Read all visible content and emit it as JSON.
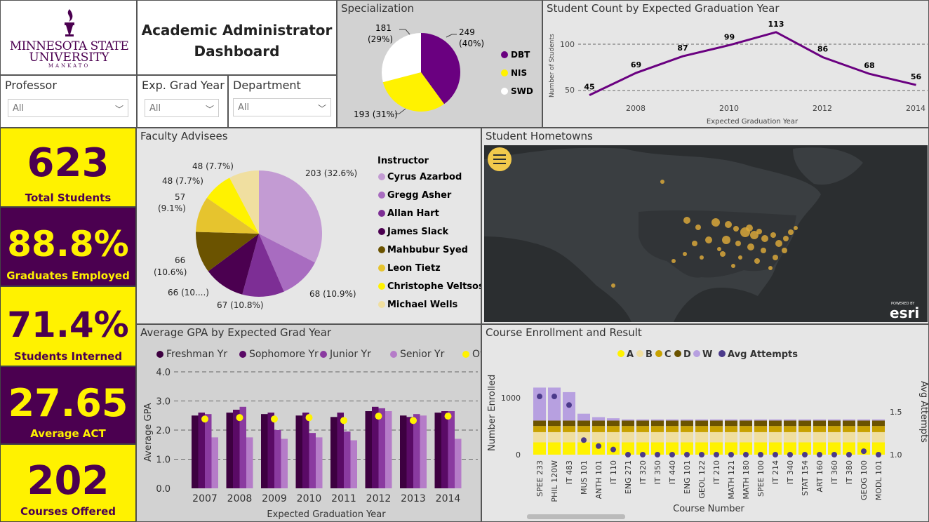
{
  "colors": {
    "purple": "#4b0050",
    "yellow": "#fff200"
  },
  "logo": {
    "line1": "MINNESOTA STATE",
    "line2": "UNIVERSITY",
    "line3": "MANKATO",
    "icon": "torch-icon"
  },
  "header": {
    "title_line1": "Academic Administrator",
    "title_line2": "Dashboard"
  },
  "slicers": {
    "professor": {
      "label": "Professor",
      "value": "All"
    },
    "grad_year": {
      "label": "Exp. Grad Year",
      "value": "All"
    },
    "department": {
      "label": "Department",
      "value": "All"
    }
  },
  "kpis": [
    {
      "value": "623",
      "label": "Total Students"
    },
    {
      "value": "88.8%",
      "label": "Graduates Employed"
    },
    {
      "value": "71.4%",
      "label": "Students Interned"
    },
    {
      "value": "27.65",
      "label": "Average ACT"
    },
    {
      "value": "202",
      "label": "Courses Offered"
    }
  ],
  "specialization": {
    "title": "Specialization",
    "chart_data": {
      "type": "pie",
      "slices": [
        {
          "name": "DBT",
          "value": 249,
          "label": "249",
          "pct": "(40%)",
          "color": "#6a0080"
        },
        {
          "name": "NIS",
          "value": 193,
          "label": "193 (31%)",
          "color": "#fff200"
        },
        {
          "name": "SWD",
          "value": 181,
          "label": "181",
          "pct": "(29%)",
          "color": "#ffffff"
        }
      ]
    }
  },
  "student_count": {
    "title": "Student Count by Expected Graduation Year",
    "xlabel": "Expected Graduation Year",
    "ylabel": "Number of Students",
    "chart_data": {
      "type": "line",
      "x": [
        2007,
        2008,
        2009,
        2010,
        2011,
        2012,
        2013,
        2014
      ],
      "values": [
        45,
        69,
        87,
        99,
        113,
        86,
        68,
        56
      ],
      "xticks": [
        "2008",
        "2010",
        "2012",
        "2014"
      ],
      "yticks": [
        "50",
        "100"
      ]
    }
  },
  "advisees": {
    "title": "Faculty Advisees",
    "legend_title": "Instructor",
    "chart_data": {
      "type": "pie",
      "slices": [
        {
          "name": "Cyrus Azarbod",
          "value": 203,
          "label": "203 (32.6%)",
          "color": "#c39bd3"
        },
        {
          "name": "Gregg Asher",
          "value": 68,
          "label": "68 (10.9%)",
          "color": "#a86cc0"
        },
        {
          "name": "Allan Hart",
          "value": 67,
          "label": "67 (10.8%)",
          "color": "#7d2e95"
        },
        {
          "name": "James Slack",
          "value": 66,
          "label": "66 (10....)",
          "color": "#4b0050"
        },
        {
          "name": "Mahbubur Syed",
          "value": 66,
          "label1": "66",
          "label2": "(10.6%)",
          "color": "#6b5300"
        },
        {
          "name": "Leon Tietz",
          "value": 57,
          "label1": "57",
          "label2": "(9.1%)",
          "color": "#e6c42e"
        },
        {
          "name": "Christophe Veltsos",
          "value": 48,
          "label": "48 (7.7%)",
          "color": "#fff200"
        },
        {
          "name": "Michael Wells",
          "value": 48,
          "label": "48 (7.7%)",
          "color": "#f0dfa0"
        }
      ]
    }
  },
  "hometowns": {
    "title": "Student Hometowns",
    "menu_icon": "hamburger-icon",
    "esri_small": "POWERED BY",
    "esri": "esri"
  },
  "gpa": {
    "title": "Average GPA by Expected Grad Year",
    "xlabel": "Expected Graduation Year",
    "ylabel": "Average GPA",
    "chart_data": {
      "type": "bar",
      "categories": [
        "2007",
        "2008",
        "2009",
        "2010",
        "2011",
        "2012",
        "2013",
        "2014"
      ],
      "yticks": [
        "0.0",
        "1.0",
        "2.0",
        "3.0",
        "4.0"
      ],
      "ylim": [
        0,
        4
      ],
      "series": [
        {
          "name": "Freshman Yr",
          "color": "#3d0040",
          "values": [
            2.5,
            2.6,
            2.55,
            2.5,
            2.45,
            2.65,
            2.5,
            2.6
          ]
        },
        {
          "name": "Sophomore Yr",
          "color": "#5a0a66",
          "values": [
            2.6,
            2.7,
            2.6,
            2.6,
            2.6,
            2.8,
            2.45,
            2.65
          ]
        },
        {
          "name": "Junior Yr",
          "color": "#8a3aa0",
          "values": [
            2.55,
            2.8,
            2.0,
            1.9,
            1.95,
            2.75,
            2.55,
            2.65
          ]
        },
        {
          "name": "Senior Yr",
          "color": "#b57cc8",
          "values": [
            1.75,
            1.75,
            1.7,
            1.75,
            1.65,
            2.65,
            2.5,
            1.7
          ]
        },
        {
          "name": "Overall",
          "color": "#fff200",
          "values": [
            2.5,
            2.55,
            2.5,
            2.55,
            2.45,
            2.6,
            2.45,
            2.6
          ]
        }
      ]
    }
  },
  "enrollment": {
    "title": "Course Enrollment and Result",
    "xlabel": "Course Number",
    "ylabel": "Number Enrolled",
    "y2label": "Avg Attempts",
    "legend": [
      {
        "name": "A",
        "color": "#fff200"
      },
      {
        "name": "B",
        "color": "#f0dfa0"
      },
      {
        "name": "C",
        "color": "#c8a200"
      },
      {
        "name": "D",
        "color": "#6b5300"
      },
      {
        "name": "W",
        "color": "#b7a0e0"
      },
      {
        "name": "Avg Attempts",
        "color": "#4b3a8a"
      }
    ],
    "yticks": [
      "0",
      "1000"
    ],
    "y2ticks": [
      "1.0",
      "1.5"
    ],
    "chart_data": {
      "type": "bar",
      "categories": [
        "SPEE 233",
        "PHIL 120W",
        "IT 483",
        "MUS 101",
        "ANTH 101",
        "IT 110",
        "ENG 271",
        "IT 320",
        "IT 350",
        "IT 440",
        "ENG 101",
        "GEOL 122",
        "IT 210",
        "MATH 121",
        "MATH 180",
        "SPEE 100",
        "IT 214",
        "IT 340",
        "STAT 154",
        "ART 160",
        "IT 360",
        "IT 380",
        "GEOG 100",
        "MODL 101"
      ],
      "totals": [
        1180,
        1180,
        1100,
        720,
        660,
        640,
        620,
        620,
        620,
        620,
        620,
        620,
        620,
        620,
        620,
        620,
        620,
        620,
        620,
        620,
        620,
        620,
        620,
        620
      ],
      "w": [
        580,
        580,
        500,
        120,
        60,
        40,
        20,
        20,
        20,
        20,
        20,
        20,
        20,
        20,
        20,
        20,
        20,
        20,
        20,
        20,
        20,
        20,
        20,
        20
      ],
      "avg_attempts": [
        1.68,
        1.68,
        1.58,
        1.17,
        1.1,
        1.06,
        1.0,
        1.0,
        1.0,
        1.0,
        1.0,
        1.0,
        1.0,
        1.0,
        1.0,
        1.0,
        1.0,
        1.0,
        1.0,
        1.0,
        1.0,
        1.0,
        1.04,
        1.0
      ]
    }
  }
}
